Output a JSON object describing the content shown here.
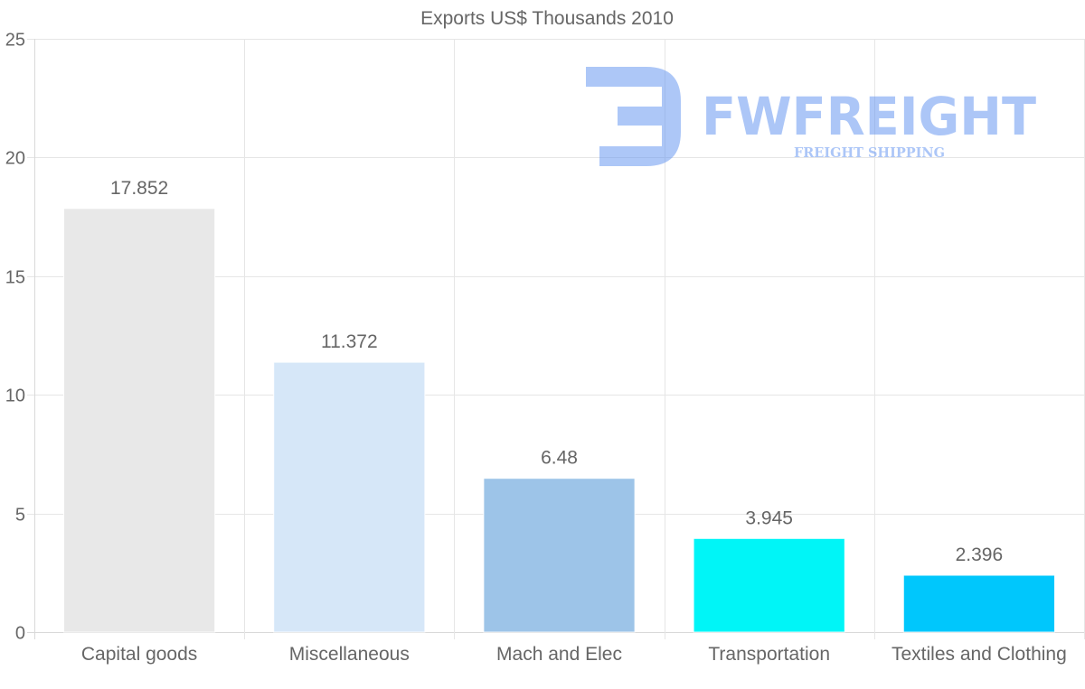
{
  "chart_data": {
    "type": "bar",
    "title": "Exports US$ Thousands 2010",
    "categories": [
      "Capital goods",
      "Miscellaneous",
      "Mach and Elec",
      "Transportation",
      "Textiles and Clothing"
    ],
    "values": [
      17.852,
      11.372,
      6.48,
      3.945,
      2.396
    ],
    "value_labels": [
      "17.852",
      "11.372",
      "6.48",
      "3.945",
      "2.396"
    ],
    "bar_colors": [
      "#e8e8e8",
      "#d6e7f8",
      "#9dc4e8",
      "#00f5f7",
      "#00c7fc"
    ],
    "ylim": [
      0,
      25
    ],
    "yticks": [
      0,
      5,
      10,
      15,
      20,
      25
    ],
    "xlabel": "",
    "ylabel": "",
    "grid": true,
    "legend": "none"
  },
  "watermark": {
    "brand": "FWFREIGHT",
    "tagline": "FREIGHT SHIPPING",
    "color": "#5b8ff0"
  }
}
